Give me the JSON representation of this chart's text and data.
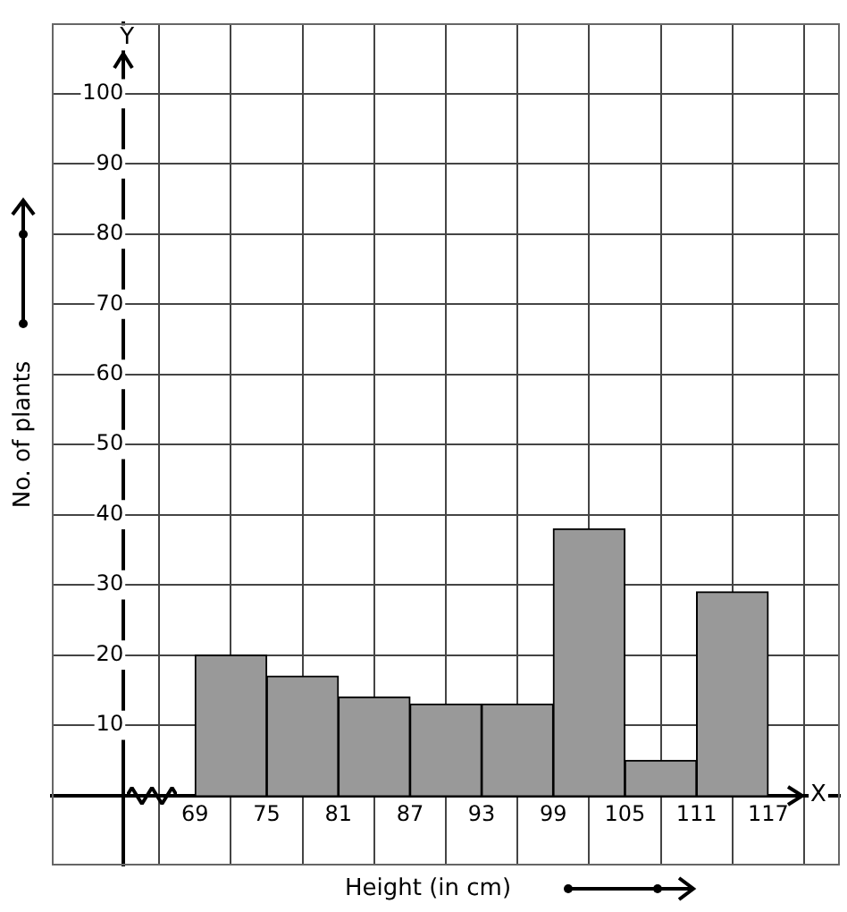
{
  "chart_data": {
    "type": "histogram",
    "xlabel": "Height (in cm)",
    "ylabel": "No. of plants",
    "bins": [
      69,
      75,
      81,
      87,
      93,
      99,
      105,
      111,
      117
    ],
    "values": [
      20,
      17,
      14,
      13,
      13,
      38,
      5,
      29
    ],
    "color": "#999999",
    "xlim": [
      57,
      123
    ],
    "ylim": [
      -10,
      110
    ],
    "xticks": [
      69,
      75,
      81,
      87,
      93,
      99,
      105,
      111,
      117
    ],
    "yticks": [
      10,
      20,
      30,
      40,
      50,
      60,
      70,
      80,
      90,
      100
    ],
    "annotations": [
      "Y",
      "X"
    ],
    "grid": true,
    "legend": false
  }
}
